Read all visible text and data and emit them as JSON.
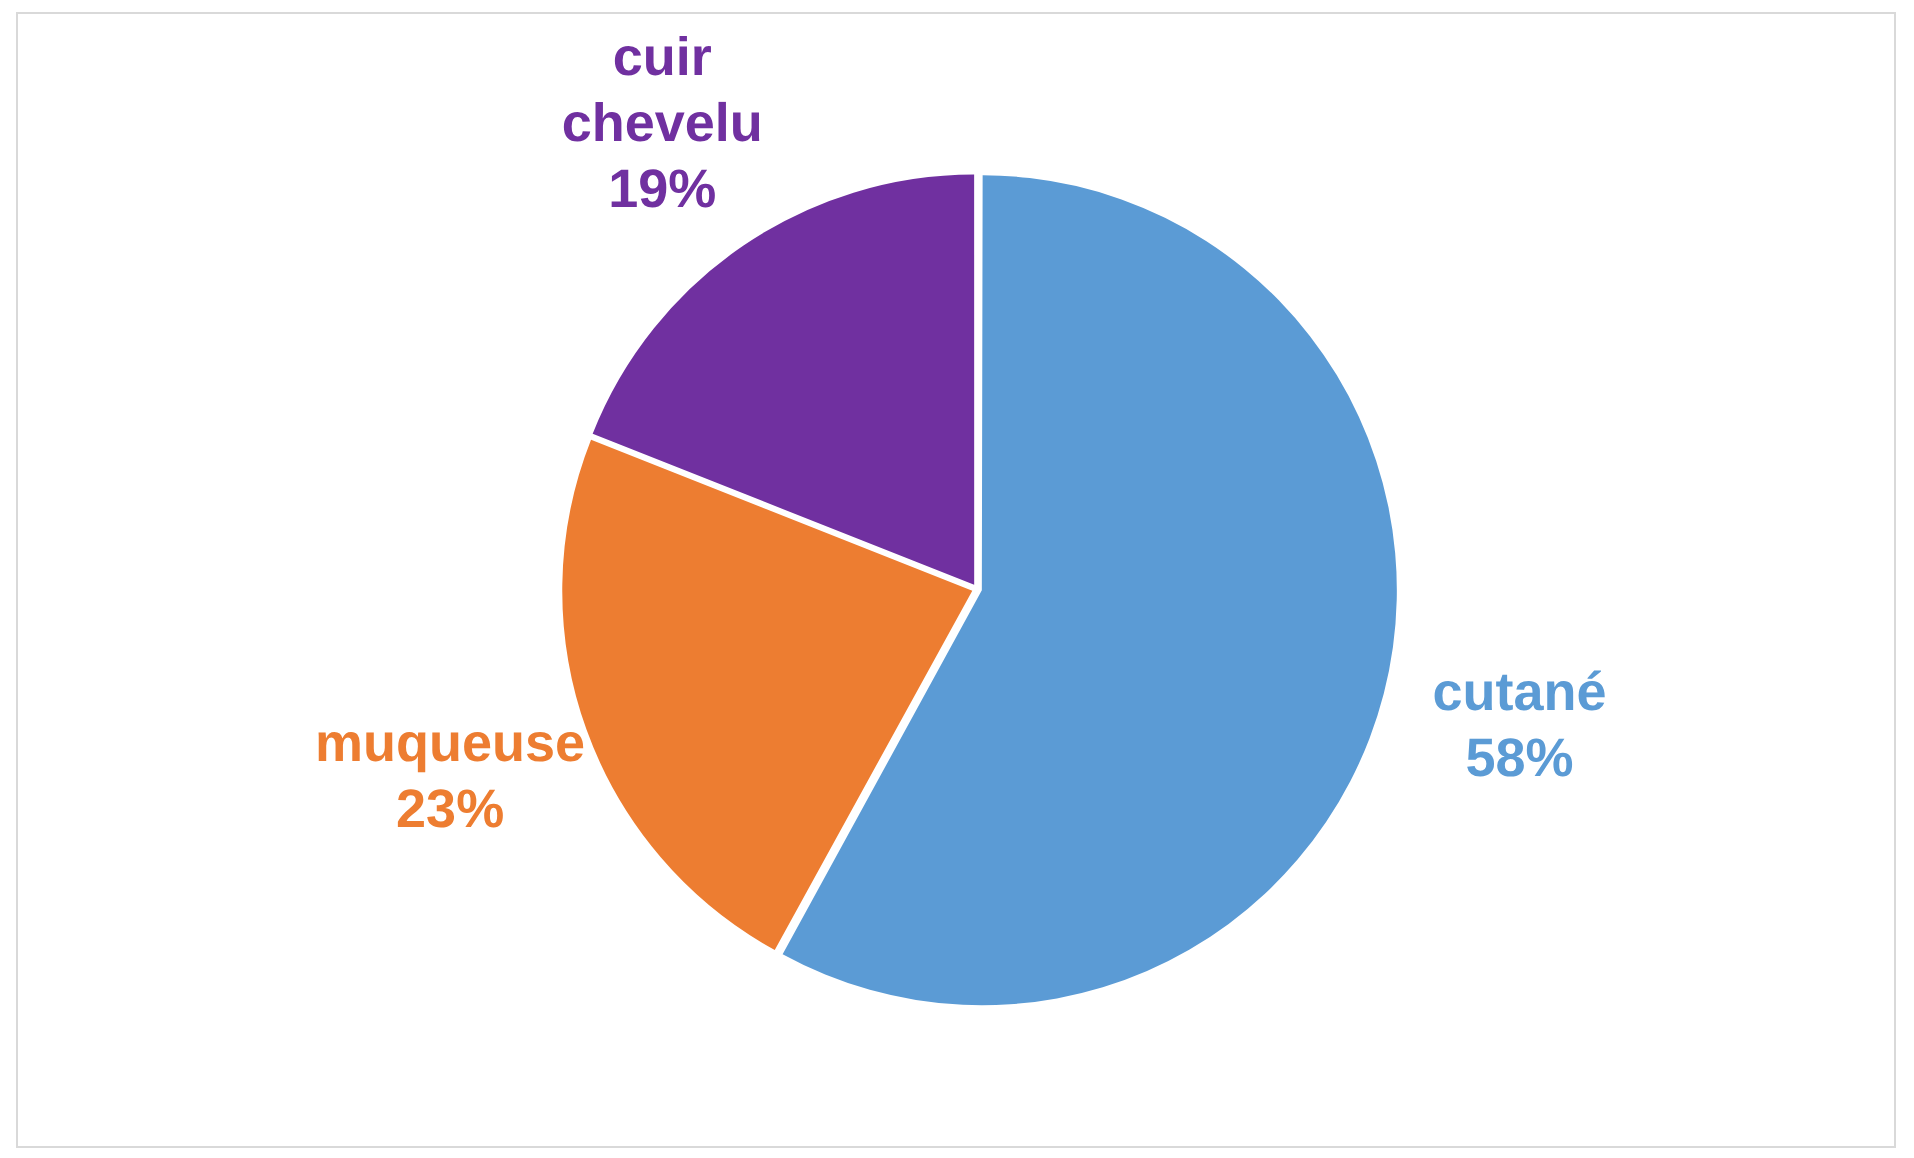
{
  "chart_data": {
    "type": "pie",
    "categories": [
      "cutané",
      "muqueuse",
      "cuir chevelu"
    ],
    "values": [
      58,
      23,
      19
    ],
    "colors": [
      "#5b9bd5",
      "#ed7d31",
      "#7030a0"
    ],
    "value_labels": [
      "58%",
      "23%",
      "19%"
    ],
    "legend": false
  }
}
